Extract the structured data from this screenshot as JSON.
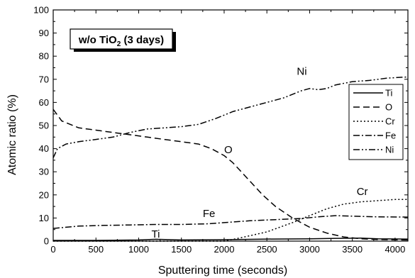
{
  "chart_data": {
    "type": "line",
    "title": "w/o TiO",
    "title_subscript": "2",
    "title_suffix": " (3 days)",
    "xlabel": "Sputtering time (seconds)",
    "ylabel": "Atomic ratio (%)",
    "xlim": [
      0,
      4150
    ],
    "ylim": [
      0,
      100
    ],
    "xticks": [
      0,
      500,
      1000,
      1500,
      2000,
      2500,
      3000,
      3500,
      4000
    ],
    "yticks": [
      0,
      10,
      20,
      30,
      40,
      50,
      60,
      70,
      80,
      90,
      100
    ],
    "grid": false,
    "legend_position": "right",
    "series": [
      {
        "name": "Ti",
        "dash": "solid",
        "points": [
          [
            0,
            0.3
          ],
          [
            500,
            0.3
          ],
          [
            1000,
            0.5
          ],
          [
            1200,
            0.8
          ],
          [
            1500,
            0.5
          ],
          [
            2000,
            0.6
          ],
          [
            2500,
            0.9
          ],
          [
            3000,
            1.0
          ],
          [
            3300,
            1.2
          ],
          [
            3600,
            1.3
          ],
          [
            3800,
            1.0
          ],
          [
            4150,
            0.9
          ]
        ]
      },
      {
        "name": "O",
        "dash": "dashed",
        "points": [
          [
            0,
            57
          ],
          [
            100,
            52
          ],
          [
            300,
            49
          ],
          [
            500,
            48
          ],
          [
            700,
            47
          ],
          [
            900,
            46
          ],
          [
            1100,
            45
          ],
          [
            1300,
            44
          ],
          [
            1500,
            43
          ],
          [
            1700,
            42
          ],
          [
            1850,
            40
          ],
          [
            2000,
            37
          ],
          [
            2100,
            34
          ],
          [
            2200,
            30
          ],
          [
            2300,
            26
          ],
          [
            2450,
            20
          ],
          [
            2600,
            15
          ],
          [
            2800,
            10
          ],
          [
            3000,
            6
          ],
          [
            3200,
            3.5
          ],
          [
            3400,
            1.8
          ],
          [
            3600,
            1.0
          ],
          [
            3800,
            0.7
          ],
          [
            4150,
            0.5
          ]
        ]
      },
      {
        "name": "Cr",
        "dash": "dotted",
        "points": [
          [
            0,
            0
          ],
          [
            2000,
            0
          ],
          [
            2200,
            1.5
          ],
          [
            2500,
            4
          ],
          [
            2800,
            8
          ],
          [
            3000,
            11
          ],
          [
            3200,
            14
          ],
          [
            3400,
            16
          ],
          [
            3600,
            17
          ],
          [
            3800,
            17.5
          ],
          [
            4000,
            18
          ],
          [
            4150,
            18
          ]
        ]
      },
      {
        "name": "Fe",
        "dash": "dashdot",
        "points": [
          [
            0,
            5.5
          ],
          [
            300,
            6.5
          ],
          [
            600,
            6.8
          ],
          [
            900,
            7
          ],
          [
            1200,
            7.2
          ],
          [
            1500,
            7.2
          ],
          [
            1800,
            7.5
          ],
          [
            2000,
            8
          ],
          [
            2300,
            8.8
          ],
          [
            2600,
            9.3
          ],
          [
            2900,
            9.8
          ],
          [
            3100,
            10.5
          ],
          [
            3300,
            11
          ],
          [
            3500,
            10.8
          ],
          [
            3800,
            10.5
          ],
          [
            4150,
            10.4
          ]
        ]
      },
      {
        "name": "Ni",
        "dash": "dashdotdot",
        "points": [
          [
            0,
            36
          ],
          [
            50,
            40
          ],
          [
            150,
            42
          ],
          [
            300,
            43
          ],
          [
            500,
            44
          ],
          [
            700,
            45
          ],
          [
            900,
            47
          ],
          [
            1100,
            48.5
          ],
          [
            1300,
            49
          ],
          [
            1500,
            49.5
          ],
          [
            1700,
            50.5
          ],
          [
            1900,
            53
          ],
          [
            2100,
            56
          ],
          [
            2300,
            58
          ],
          [
            2500,
            60
          ],
          [
            2700,
            62
          ],
          [
            2900,
            65
          ],
          [
            3000,
            66
          ],
          [
            3100,
            65.5
          ],
          [
            3200,
            66
          ],
          [
            3300,
            67.5
          ],
          [
            3500,
            69
          ],
          [
            3700,
            69.5
          ],
          [
            3900,
            70.5
          ],
          [
            4150,
            71
          ]
        ]
      }
    ],
    "annotations": [
      {
        "text": "Ni",
        "x": 2850,
        "y": 72
      },
      {
        "text": "O",
        "x": 2000,
        "y": 38
      },
      {
        "text": "Cr",
        "x": 3550,
        "y": 20
      },
      {
        "text": "Fe",
        "x": 1750,
        "y": 10.5
      },
      {
        "text": "Ti",
        "x": 1150,
        "y": 1.5
      }
    ]
  }
}
